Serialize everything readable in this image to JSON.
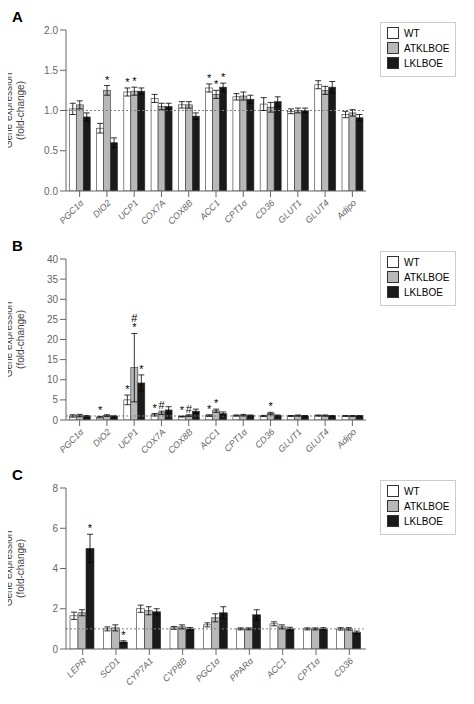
{
  "chart_data": [
    {
      "type": "bar",
      "title": "A",
      "ylabel": "Gene expression\n(fold-change)",
      "categories": [
        "PGC1α",
        "DIO2",
        "UCP1",
        "COX7A",
        "COX8B",
        "ACC1",
        "CPT1α",
        "CD36",
        "GLUT1",
        "GLUT4",
        "Adipo"
      ],
      "series": [
        {
          "name": "WT",
          "color": "#ffffff",
          "values": [
            1.02,
            0.78,
            1.23,
            1.15,
            1.07,
            1.28,
            1.17,
            1.08,
            0.99,
            1.32,
            0.95
          ],
          "errors": [
            0.07,
            0.06,
            0.05,
            0.05,
            0.04,
            0.05,
            0.04,
            0.08,
            0.03,
            0.05,
            0.04
          ]
        },
        {
          "name": "ATKLBOE",
          "color": "#b8b8b8",
          "values": [
            1.07,
            1.25,
            1.24,
            1.05,
            1.07,
            1.2,
            1.18,
            1.04,
            1.0,
            1.25,
            0.97
          ],
          "errors": [
            0.05,
            0.06,
            0.05,
            0.04,
            0.04,
            0.05,
            0.05,
            0.06,
            0.03,
            0.05,
            0.04
          ]
        },
        {
          "name": "LKLBOE",
          "color": "#1a1a1a",
          "values": [
            0.92,
            0.6,
            1.24,
            1.05,
            0.93,
            1.29,
            1.14,
            1.11,
            1.0,
            1.29,
            0.91
          ],
          "errors": [
            0.05,
            0.06,
            0.04,
            0.04,
            0.04,
            0.05,
            0.05,
            0.06,
            0.03,
            0.07,
            0.04
          ]
        }
      ],
      "ylim": [
        0.0,
        2.0
      ],
      "yticks": [
        {
          "value": 0,
          "label": "0.0"
        },
        0.5,
        {
          "value": 1,
          "label": "1.0"
        },
        1.5,
        {
          "value": 2,
          "label": "2.0"
        }
      ],
      "reference_line": 1.0,
      "annotations": [
        {
          "series": "ATKLBOE",
          "category": "DIO2",
          "text": "*"
        },
        {
          "series": "WT",
          "category": "UCP1",
          "text": "*"
        },
        {
          "series": "ATKLBOE",
          "category": "UCP1",
          "text": "*"
        },
        {
          "series": "WT",
          "category": "ACC1",
          "text": "*"
        },
        {
          "series": "ATKLBOE",
          "category": "ACC1",
          "text": "*"
        },
        {
          "series": "LKLBOE",
          "category": "ACC1",
          "text": "*"
        }
      ],
      "grid": false,
      "legend": "right"
    },
    {
      "type": "bar",
      "title": "B",
      "ylabel": "Gene expression\n(fold-change)",
      "categories": [
        "PGC1α",
        "DIO2",
        "UCP1",
        "COX7A",
        "COX8B",
        "ACC1",
        "CPT1α",
        "CD36",
        "GLUT1",
        "GLUT4",
        "Adipo"
      ],
      "series": [
        {
          "name": "WT",
          "color": "#ffffff",
          "values": [
            1.0,
            0.7,
            5.0,
            1.3,
            0.85,
            1.1,
            1.1,
            1.0,
            1.0,
            1.1,
            1.0
          ],
          "errors": [
            0.3,
            0.2,
            1.2,
            0.3,
            0.12,
            0.2,
            0.15,
            0.15,
            0.1,
            0.15,
            0.1
          ]
        },
        {
          "name": "ATKLBOE",
          "color": "#b8b8b8",
          "values": [
            1.1,
            1.1,
            13.0,
            1.8,
            1.1,
            2.3,
            1.2,
            1.6,
            1.1,
            1.1,
            1.0
          ],
          "errors": [
            0.3,
            0.2,
            8.5,
            0.4,
            0.2,
            0.4,
            0.2,
            0.3,
            0.15,
            0.15,
            0.1
          ]
        },
        {
          "name": "LKLBOE",
          "color": "#1a1a1a",
          "values": [
            0.9,
            0.9,
            9.2,
            2.5,
            2.2,
            1.6,
            1.1,
            1.1,
            1.0,
            1.0,
            1.0
          ],
          "errors": [
            0.2,
            0.15,
            2.0,
            0.8,
            0.5,
            0.4,
            0.15,
            0.15,
            0.1,
            0.1,
            0.1
          ]
        }
      ],
      "ylim": [
        0,
        40
      ],
      "yticks": [
        0,
        5,
        10,
        15,
        20,
        25,
        30,
        35,
        40
      ],
      "reference_line": 1.0,
      "annotations": [
        {
          "series": "WT",
          "category": "DIO2",
          "text": "*"
        },
        {
          "series": "WT",
          "category": "UCP1",
          "text": "*"
        },
        {
          "series": "ATKLBOE",
          "category": "UCP1",
          "text": "*"
        },
        {
          "series": "ATKLBOE",
          "category": "UCP1",
          "text": "#"
        },
        {
          "series": "LKLBOE",
          "category": "UCP1",
          "text": "*"
        },
        {
          "series": "WT",
          "category": "COX7A",
          "text": "*"
        },
        {
          "series": "ATKLBOE",
          "category": "COX7A",
          "text": "#"
        },
        {
          "series": "WT",
          "category": "COX8B",
          "text": "*"
        },
        {
          "series": "ATKLBOE",
          "category": "COX8B",
          "text": "#"
        },
        {
          "series": "WT",
          "category": "ACC1",
          "text": "*"
        },
        {
          "series": "ATKLBOE",
          "category": "ACC1",
          "text": "*"
        },
        {
          "series": "ATKLBOE",
          "category": "CD36",
          "text": "*"
        }
      ],
      "grid": false,
      "legend": "right"
    },
    {
      "type": "bar",
      "title": "C",
      "ylabel": "Gene expression\n(fold-change)",
      "categories": [
        "LEPR",
        "SCD1",
        "CYP7A1",
        "CYP8B",
        "PGC1α",
        "PPARα",
        "ACC1",
        "CPT1α",
        "CD36"
      ],
      "series": [
        {
          "name": "WT",
          "color": "#ffffff",
          "values": [
            1.65,
            1.0,
            2.0,
            1.05,
            1.2,
            1.0,
            1.25,
            1.0,
            1.0
          ],
          "errors": [
            0.18,
            0.1,
            0.18,
            0.07,
            0.1,
            0.05,
            0.1,
            0.05,
            0.06
          ]
        },
        {
          "name": "ATKLBOE",
          "color": "#b8b8b8",
          "values": [
            1.8,
            1.05,
            1.9,
            1.1,
            1.55,
            1.0,
            1.1,
            1.0,
            1.0
          ],
          "errors": [
            0.15,
            0.15,
            0.2,
            0.1,
            0.2,
            0.05,
            0.1,
            0.05,
            0.06
          ]
        },
        {
          "name": "LKLBOE",
          "color": "#1a1a1a",
          "values": [
            5.0,
            0.35,
            1.85,
            1.0,
            1.8,
            1.7,
            1.0,
            1.0,
            0.82
          ],
          "errors": [
            0.7,
            0.06,
            0.15,
            0.07,
            0.3,
            0.25,
            0.08,
            0.06,
            0.07
          ]
        }
      ],
      "ylim": [
        0,
        8
      ],
      "yticks": [
        0,
        2,
        4,
        6,
        8
      ],
      "reference_line": 1.0,
      "annotations": [
        {
          "series": "LKLBOE",
          "category": "LEPR",
          "text": "*"
        },
        {
          "series": "LKLBOE",
          "category": "SCD1",
          "text": "*"
        }
      ],
      "grid": false,
      "legend": "right"
    }
  ]
}
